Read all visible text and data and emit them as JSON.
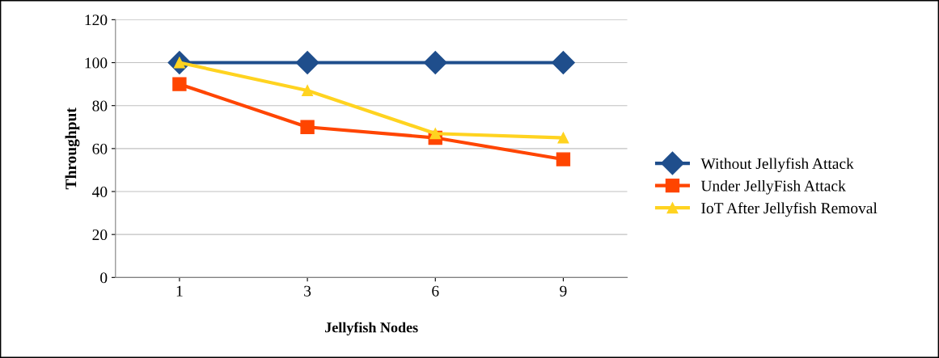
{
  "chart_data": {
    "type": "line",
    "xlabel": "Jellyfish Nodes",
    "ylabel": "Throughput",
    "categories": [
      "1",
      "3",
      "6",
      "9"
    ],
    "series": [
      {
        "name": "Without Jellyfish Attack",
        "color": "#1f4e8c",
        "marker": "diamond",
        "values": [
          100,
          100,
          100,
          100
        ]
      },
      {
        "name": "Under JellyFish Attack",
        "color": "#ff4500",
        "marker": "square",
        "values": [
          90,
          70,
          65,
          55
        ]
      },
      {
        "name": "IoT After Jellyfish Removal",
        "color": "#ffd320",
        "marker": "triangle",
        "values": [
          100,
          87,
          67,
          65
        ]
      }
    ],
    "ylim": [
      0,
      120
    ],
    "yticks": [
      0,
      20,
      40,
      60,
      80,
      100,
      120
    ],
    "grid": "y",
    "legend": "right",
    "line_style": "solid"
  }
}
